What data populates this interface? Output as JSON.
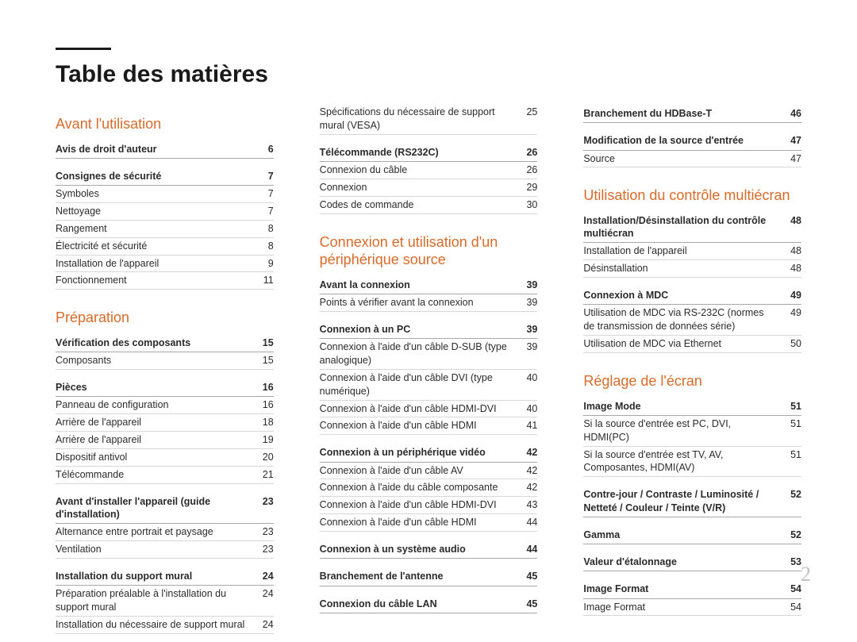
{
  "title": "Table des matières",
  "page_number": "2",
  "colors": {
    "section_heading": "#d96b2a",
    "text": "#2b2b2b",
    "rule_strong": "#a8a8a8",
    "rule_light": "#d7d7d7",
    "page_num": "#c2c2c2",
    "background": "#ffffff"
  },
  "columns": [
    {
      "sections": [
        {
          "title": "Avant l'utilisation",
          "groups": [
            {
              "header": {
                "label": "Avis de droit d'auteur",
                "num": "6"
              },
              "rows": []
            },
            {
              "header": {
                "label": "Consignes de sécurité",
                "num": "7"
              },
              "rows": [
                {
                  "label": "Symboles",
                  "num": "7"
                },
                {
                  "label": "Nettoyage",
                  "num": "7"
                },
                {
                  "label": "Rangement",
                  "num": "8"
                },
                {
                  "label": "Électricité et sécurité",
                  "num": "8"
                },
                {
                  "label": "Installation de l'appareil",
                  "num": "9"
                },
                {
                  "label": "Fonctionnement",
                  "num": "11"
                }
              ]
            }
          ]
        },
        {
          "title": "Préparation",
          "groups": [
            {
              "header": {
                "label": "Vérification des composants",
                "num": "15"
              },
              "rows": [
                {
                  "label": "Composants",
                  "num": "15"
                }
              ]
            },
            {
              "header": {
                "label": "Pièces",
                "num": "16"
              },
              "rows": [
                {
                  "label": "Panneau de configuration",
                  "num": "16"
                },
                {
                  "label": "Arrière de l'appareil",
                  "num": "18"
                },
                {
                  "label": "Arrière de l'appareil",
                  "num": "19"
                },
                {
                  "label": "Dispositif antivol",
                  "num": "20"
                },
                {
                  "label": "Télécommande",
                  "num": "21"
                }
              ]
            },
            {
              "header": {
                "label": "Avant d'installer l'appareil (guide d'installation)",
                "num": "23"
              },
              "rows": [
                {
                  "label": "Alternance entre portrait et paysage",
                  "num": "23"
                },
                {
                  "label": "Ventilation",
                  "num": "23"
                }
              ]
            },
            {
              "header": {
                "label": "Installation du support mural",
                "num": "24"
              },
              "rows": [
                {
                  "label": "Préparation préalable à l'installation du support mural",
                  "num": "24"
                },
                {
                  "label": "Installation du nécessaire de support mural",
                  "num": "24"
                }
              ]
            }
          ]
        }
      ]
    },
    {
      "sections": [
        {
          "title": null,
          "groups": [
            {
              "header": null,
              "rows": [
                {
                  "label": "Spécifications du nécessaire de support mural (VESA)",
                  "num": "25"
                }
              ]
            },
            {
              "header": {
                "label": "Télécommande (RS232C)",
                "num": "26"
              },
              "rows": [
                {
                  "label": "Connexion du câble",
                  "num": "26"
                },
                {
                  "label": "Connexion",
                  "num": "29"
                },
                {
                  "label": "Codes de commande",
                  "num": "30"
                }
              ]
            }
          ]
        },
        {
          "title": "Connexion et utilisation d'un périphérique source",
          "groups": [
            {
              "header": {
                "label": "Avant la connexion",
                "num": "39"
              },
              "rows": [
                {
                  "label": "Points à vérifier avant la connexion",
                  "num": "39"
                }
              ]
            },
            {
              "header": {
                "label": "Connexion à un PC",
                "num": "39"
              },
              "rows": [
                {
                  "label": "Connexion à l'aide d'un câble D-SUB (type analogique)",
                  "num": "39"
                },
                {
                  "label": "Connexion à l'aide d'un câble DVI (type numérique)",
                  "num": "40"
                },
                {
                  "label": "Connexion à l'aide d'un câble HDMI-DVI",
                  "num": "40"
                },
                {
                  "label": "Connexion à l'aide d'un câble HDMI",
                  "num": "41"
                }
              ]
            },
            {
              "header": {
                "label": "Connexion à un périphérique vidéo",
                "num": "42"
              },
              "rows": [
                {
                  "label": "Connexion à l'aide d'un câble AV",
                  "num": "42"
                },
                {
                  "label": "Connexion à l'aide du câble composante",
                  "num": "42"
                },
                {
                  "label": "Connexion à l'aide d'un câble HDMI-DVI",
                  "num": "43"
                },
                {
                  "label": "Connexion à l'aide d'un câble HDMI",
                  "num": "44"
                }
              ]
            },
            {
              "header": {
                "label": "Connexion à un système audio",
                "num": "44"
              },
              "rows": []
            },
            {
              "header": {
                "label": "Branchement de l'antenne",
                "num": "45"
              },
              "rows": []
            },
            {
              "header": {
                "label": "Connexion du câble LAN",
                "num": "45"
              },
              "rows": []
            }
          ]
        }
      ]
    },
    {
      "sections": [
        {
          "title": null,
          "groups": [
            {
              "header": {
                "label": "Branchement du HDBase-T",
                "num": "46"
              },
              "rows": []
            },
            {
              "header": {
                "label": "Modification de la source d'entrée",
                "num": "47"
              },
              "rows": [
                {
                  "label": "Source",
                  "num": "47"
                }
              ]
            }
          ]
        },
        {
          "title": "Utilisation du contrôle multiécran",
          "groups": [
            {
              "header": {
                "label": "Installation/Désinstallation du contrôle multiécran",
                "num": "48"
              },
              "rows": [
                {
                  "label": "Installation de l'appareil",
                  "num": "48"
                },
                {
                  "label": "Désinstallation",
                  "num": "48"
                }
              ]
            },
            {
              "header": {
                "label": "Connexion à MDC",
                "num": "49"
              },
              "rows": [
                {
                  "label": "Utilisation de MDC via RS-232C (normes de transmission de données série)",
                  "num": "49"
                },
                {
                  "label": "Utilisation de MDC via Ethernet",
                  "num": "50"
                }
              ]
            }
          ]
        },
        {
          "title": "Réglage de l'écran",
          "groups": [
            {
              "header": {
                "label": "Image Mode",
                "num": "51"
              },
              "rows": [
                {
                  "label": "Si la source d'entrée est PC, DVI, HDMI(PC)",
                  "num": "51"
                },
                {
                  "label": "Si la source d'entrée est TV, AV, Composantes, HDMI(AV)",
                  "num": "51"
                }
              ]
            },
            {
              "header": {
                "label": "Contre-jour / Contraste / Luminosité / Netteté / Couleur / Teinte (V/R)",
                "num": "52"
              },
              "rows": []
            },
            {
              "header": {
                "label": "Gamma",
                "num": "52"
              },
              "rows": []
            },
            {
              "header": {
                "label": "Valeur d'étalonnage",
                "num": "53"
              },
              "rows": []
            },
            {
              "header": {
                "label": "Image Format",
                "num": "54"
              },
              "rows": [
                {
                  "label": "Image Format",
                  "num": "54"
                }
              ]
            }
          ]
        }
      ]
    }
  ]
}
